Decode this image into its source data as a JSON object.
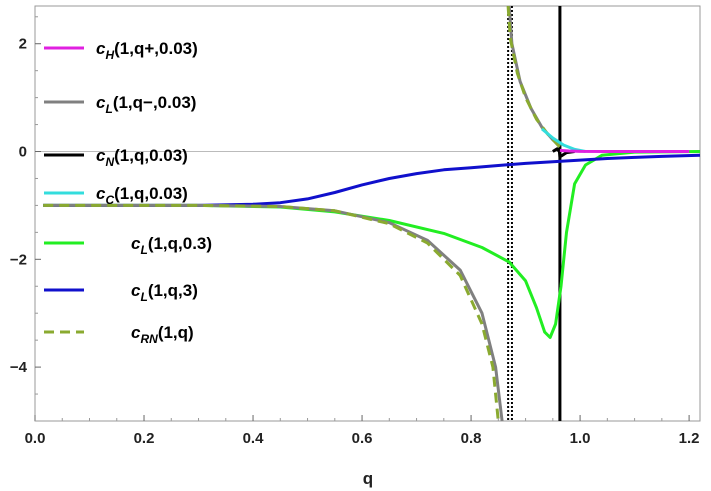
{
  "chart_data": {
    "type": "line",
    "title": "",
    "xlabel": "q",
    "ylabel": "",
    "xlim": [
      0.0,
      1.22
    ],
    "ylim": [
      -5,
      2.7
    ],
    "grid": false,
    "legend_position": "top-left",
    "x_ticks": [
      "0.0",
      "0.2",
      "0.4",
      "0.6",
      "0.8",
      "1.0",
      "1.2"
    ],
    "y_ticks": [
      "2",
      "0",
      "−2",
      "−4"
    ],
    "reference_lines": [
      {
        "orientation": "horizontal",
        "value": 0,
        "style": "solid",
        "color": "#bbbbbb"
      },
      {
        "orientation": "vertical",
        "value": 0.868,
        "style": "dotted",
        "color": "#000000"
      },
      {
        "orientation": "vertical",
        "value": 0.875,
        "style": "dotted",
        "color": "#000000"
      },
      {
        "orientation": "vertical",
        "value": 0.963,
        "style": "solid",
        "color": "#000000"
      }
    ],
    "series": [
      {
        "name": "c_H(1,q+,0.03)",
        "legend_main": "c",
        "legend_sub": "H",
        "legend_rest": "(1,q+,0.03)",
        "color": "#e020e0",
        "dash": "solid",
        "points": [
          [
            0.963,
            0.02
          ],
          [
            0.98,
            0.01
          ],
          [
            1.0,
            0.003
          ],
          [
            1.05,
            0.0
          ],
          [
            1.1,
            0.0
          ],
          [
            1.2,
            0.0
          ]
        ]
      },
      {
        "name": "c_L(1,q−,0.03)",
        "legend_main": "c",
        "legend_sub": "L",
        "legend_rest": "(1,q−,0.03)",
        "color": "#808080",
        "dash": "solid",
        "points": [
          [
            0.015,
            -1.0
          ],
          [
            0.3,
            -1.0
          ],
          [
            0.45,
            -1.02
          ],
          [
            0.55,
            -1.1
          ],
          [
            0.65,
            -1.32
          ],
          [
            0.72,
            -1.65
          ],
          [
            0.78,
            -2.2
          ],
          [
            0.82,
            -3.0
          ],
          [
            0.845,
            -4.0
          ],
          [
            0.857,
            -5.0
          ]
        ],
        "points2": [
          [
            0.87,
            2.7
          ],
          [
            0.875,
            2.0
          ],
          [
            0.89,
            1.3
          ],
          [
            0.91,
            0.8
          ],
          [
            0.93,
            0.45
          ],
          [
            0.95,
            0.22
          ],
          [
            0.963,
            0.1
          ]
        ]
      },
      {
        "name": "c_N(1,q,0.03)",
        "legend_main": "c",
        "legend_sub": "N",
        "legend_rest": "(1,q,0.03)",
        "color": "#000000",
        "dash": "solid",
        "points": [
          [
            0.95,
            0.0
          ],
          [
            0.958,
            0.05
          ],
          [
            0.962,
            0.0
          ],
          [
            0.963,
            -0.1
          ],
          [
            0.966,
            -0.08
          ],
          [
            0.975,
            -0.02
          ],
          [
            0.99,
            0.0
          ]
        ]
      },
      {
        "name": "c_C(1,q,0.03)",
        "legend_main": "c",
        "legend_sub": "C",
        "legend_rest": "(1,q,0.03)",
        "color": "#33dddd",
        "dash": "solid",
        "points": [
          [
            0.93,
            0.42
          ],
          [
            0.95,
            0.25
          ],
          [
            0.97,
            0.12
          ],
          [
            0.99,
            0.04
          ],
          [
            1.01,
            0.0
          ]
        ]
      },
      {
        "name": "c_L(1,q,0.3)",
        "legend_main": "c",
        "legend_sub": "L",
        "legend_rest": "(1,q,0.3)",
        "color": "#22ee22",
        "dash": "solid",
        "points": [
          [
            0.015,
            -1.0
          ],
          [
            0.3,
            -1.0
          ],
          [
            0.45,
            -1.03
          ],
          [
            0.55,
            -1.12
          ],
          [
            0.65,
            -1.28
          ],
          [
            0.75,
            -1.52
          ],
          [
            0.82,
            -1.78
          ],
          [
            0.87,
            -2.05
          ],
          [
            0.9,
            -2.4
          ],
          [
            0.92,
            -2.9
          ],
          [
            0.935,
            -3.35
          ],
          [
            0.945,
            -3.45
          ],
          [
            0.955,
            -3.2
          ],
          [
            0.965,
            -2.5
          ],
          [
            0.975,
            -1.5
          ],
          [
            0.99,
            -0.6
          ],
          [
            1.01,
            -0.25
          ],
          [
            1.04,
            -0.07
          ],
          [
            1.1,
            -0.01
          ],
          [
            1.22,
            0.0
          ]
        ]
      },
      {
        "name": "c_L(1,q,3)",
        "legend_main": "c",
        "legend_sub": "L",
        "legend_rest": "(1,q,3)",
        "color": "#1010cc",
        "dash": "solid",
        "points": [
          [
            0.015,
            -1.0
          ],
          [
            0.3,
            -1.0
          ],
          [
            0.4,
            -0.98
          ],
          [
            0.45,
            -0.95
          ],
          [
            0.5,
            -0.88
          ],
          [
            0.55,
            -0.76
          ],
          [
            0.6,
            -0.62
          ],
          [
            0.65,
            -0.5
          ],
          [
            0.7,
            -0.41
          ],
          [
            0.75,
            -0.34
          ],
          [
            0.8,
            -0.3
          ],
          [
            0.85,
            -0.26
          ],
          [
            0.9,
            -0.22
          ],
          [
            0.95,
            -0.19
          ],
          [
            1.0,
            -0.16
          ],
          [
            1.05,
            -0.13
          ],
          [
            1.1,
            -0.11
          ],
          [
            1.15,
            -0.09
          ],
          [
            1.22,
            -0.07
          ]
        ]
      },
      {
        "name": "c_RN(1,q)",
        "legend_main": "c",
        "legend_sub": "RN",
        "legend_rest": "(1,q)",
        "color": "#8aaa30",
        "dash": "dashed",
        "points": [
          [
            0.015,
            -1.0
          ],
          [
            0.3,
            -1.0
          ],
          [
            0.45,
            -1.02
          ],
          [
            0.55,
            -1.1
          ],
          [
            0.65,
            -1.34
          ],
          [
            0.72,
            -1.7
          ],
          [
            0.78,
            -2.3
          ],
          [
            0.82,
            -3.2
          ],
          [
            0.84,
            -4.0
          ],
          [
            0.85,
            -5.0
          ]
        ],
        "points2": [
          [
            0.868,
            2.7
          ],
          [
            0.872,
            2.1
          ],
          [
            0.885,
            1.45
          ],
          [
            0.9,
            1.0
          ],
          [
            0.92,
            0.6
          ],
          [
            0.94,
            0.33
          ],
          [
            0.963,
            0.08
          ]
        ]
      }
    ]
  }
}
